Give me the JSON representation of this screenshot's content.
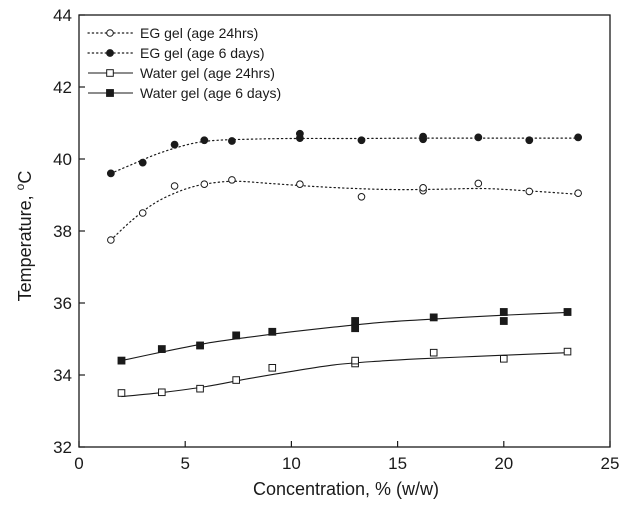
{
  "chart_data": {
    "type": "scatter",
    "xlabel": "Concentration,  % (w/w)",
    "ylabel_main": "Temperature, ",
    "ylabel_super": "o",
    "ylabel_unit": "C",
    "xlim": [
      0,
      25
    ],
    "ylim": [
      32,
      44
    ],
    "xticks": [
      0,
      5,
      10,
      15,
      20,
      25
    ],
    "yticks": [
      32,
      34,
      36,
      38,
      40,
      42,
      44
    ],
    "grid": false,
    "legend_position": "top-left",
    "series": [
      {
        "name": "EG gel (age 24hrs)",
        "marker": "open-circle",
        "line": "dotted",
        "points": [
          [
            1.5,
            37.75
          ],
          [
            3.0,
            38.5
          ],
          [
            4.5,
            39.25
          ],
          [
            5.9,
            39.3
          ],
          [
            7.2,
            39.42
          ],
          [
            10.4,
            39.3
          ],
          [
            13.3,
            38.95
          ],
          [
            16.2,
            39.12
          ],
          [
            16.2,
            39.2
          ],
          [
            18.8,
            39.32
          ],
          [
            21.2,
            39.1
          ],
          [
            23.5,
            39.05
          ]
        ],
        "fit": [
          [
            1.5,
            37.75
          ],
          [
            2.5,
            38.3
          ],
          [
            3.5,
            38.75
          ],
          [
            4.5,
            39.05
          ],
          [
            5.5,
            39.25
          ],
          [
            6.5,
            39.35
          ],
          [
            7.5,
            39.38
          ],
          [
            9,
            39.32
          ],
          [
            11,
            39.24
          ],
          [
            13,
            39.18
          ],
          [
            15,
            39.15
          ],
          [
            17,
            39.16
          ],
          [
            19,
            39.18
          ],
          [
            21,
            39.12
          ],
          [
            23.5,
            39.02
          ]
        ]
      },
      {
        "name": "EG gel (age 6 days)",
        "marker": "filled-circle",
        "line": "dotted",
        "points": [
          [
            1.5,
            39.6
          ],
          [
            3.0,
            39.9
          ],
          [
            4.5,
            40.4
          ],
          [
            5.9,
            40.52
          ],
          [
            7.2,
            40.5
          ],
          [
            10.4,
            40.58
          ],
          [
            10.4,
            40.7
          ],
          [
            13.3,
            40.52
          ],
          [
            16.2,
            40.55
          ],
          [
            16.2,
            40.62
          ],
          [
            18.8,
            40.6
          ],
          [
            21.2,
            40.52
          ],
          [
            23.5,
            40.6
          ]
        ],
        "fit": [
          [
            1.5,
            39.6
          ],
          [
            2.5,
            39.85
          ],
          [
            3.5,
            40.1
          ],
          [
            4.5,
            40.3
          ],
          [
            5.5,
            40.45
          ],
          [
            6.5,
            40.52
          ],
          [
            8,
            40.55
          ],
          [
            10,
            40.57
          ],
          [
            13,
            40.57
          ],
          [
            16,
            40.58
          ],
          [
            19,
            40.58
          ],
          [
            23.5,
            40.58
          ]
        ]
      },
      {
        "name": "Water gel (age 24hrs)",
        "marker": "open-square",
        "line": "solid",
        "points": [
          [
            2.0,
            33.5
          ],
          [
            3.9,
            33.52
          ],
          [
            5.7,
            33.62
          ],
          [
            7.4,
            33.86
          ],
          [
            9.1,
            34.2
          ],
          [
            13.0,
            34.32
          ],
          [
            13.0,
            34.4
          ],
          [
            16.7,
            34.62
          ],
          [
            20.0,
            34.45
          ],
          [
            23.0,
            34.65
          ]
        ],
        "fit": [
          [
            2.0,
            33.4
          ],
          [
            4,
            33.52
          ],
          [
            6,
            33.68
          ],
          [
            8,
            33.9
          ],
          [
            10,
            34.1
          ],
          [
            12,
            34.28
          ],
          [
            14,
            34.38
          ],
          [
            16,
            34.45
          ],
          [
            18,
            34.5
          ],
          [
            20,
            34.55
          ],
          [
            23,
            34.62
          ]
        ]
      },
      {
        "name": "Water gel (age 6 days)",
        "marker": "filled-square",
        "line": "solid",
        "points": [
          [
            2.0,
            34.4
          ],
          [
            3.9,
            34.72
          ],
          [
            5.7,
            34.82
          ],
          [
            7.4,
            35.1
          ],
          [
            9.1,
            35.2
          ],
          [
            13.0,
            35.3
          ],
          [
            13.0,
            35.5
          ],
          [
            16.7,
            35.6
          ],
          [
            20.0,
            35.5
          ],
          [
            20.0,
            35.75
          ],
          [
            23.0,
            35.75
          ]
        ],
        "fit": [
          [
            2.0,
            34.4
          ],
          [
            4,
            34.65
          ],
          [
            6,
            34.88
          ],
          [
            8,
            35.05
          ],
          [
            10,
            35.2
          ],
          [
            12,
            35.33
          ],
          [
            14,
            35.45
          ],
          [
            16,
            35.53
          ],
          [
            18,
            35.6
          ],
          [
            20,
            35.66
          ],
          [
            23,
            35.74
          ]
        ]
      }
    ]
  }
}
